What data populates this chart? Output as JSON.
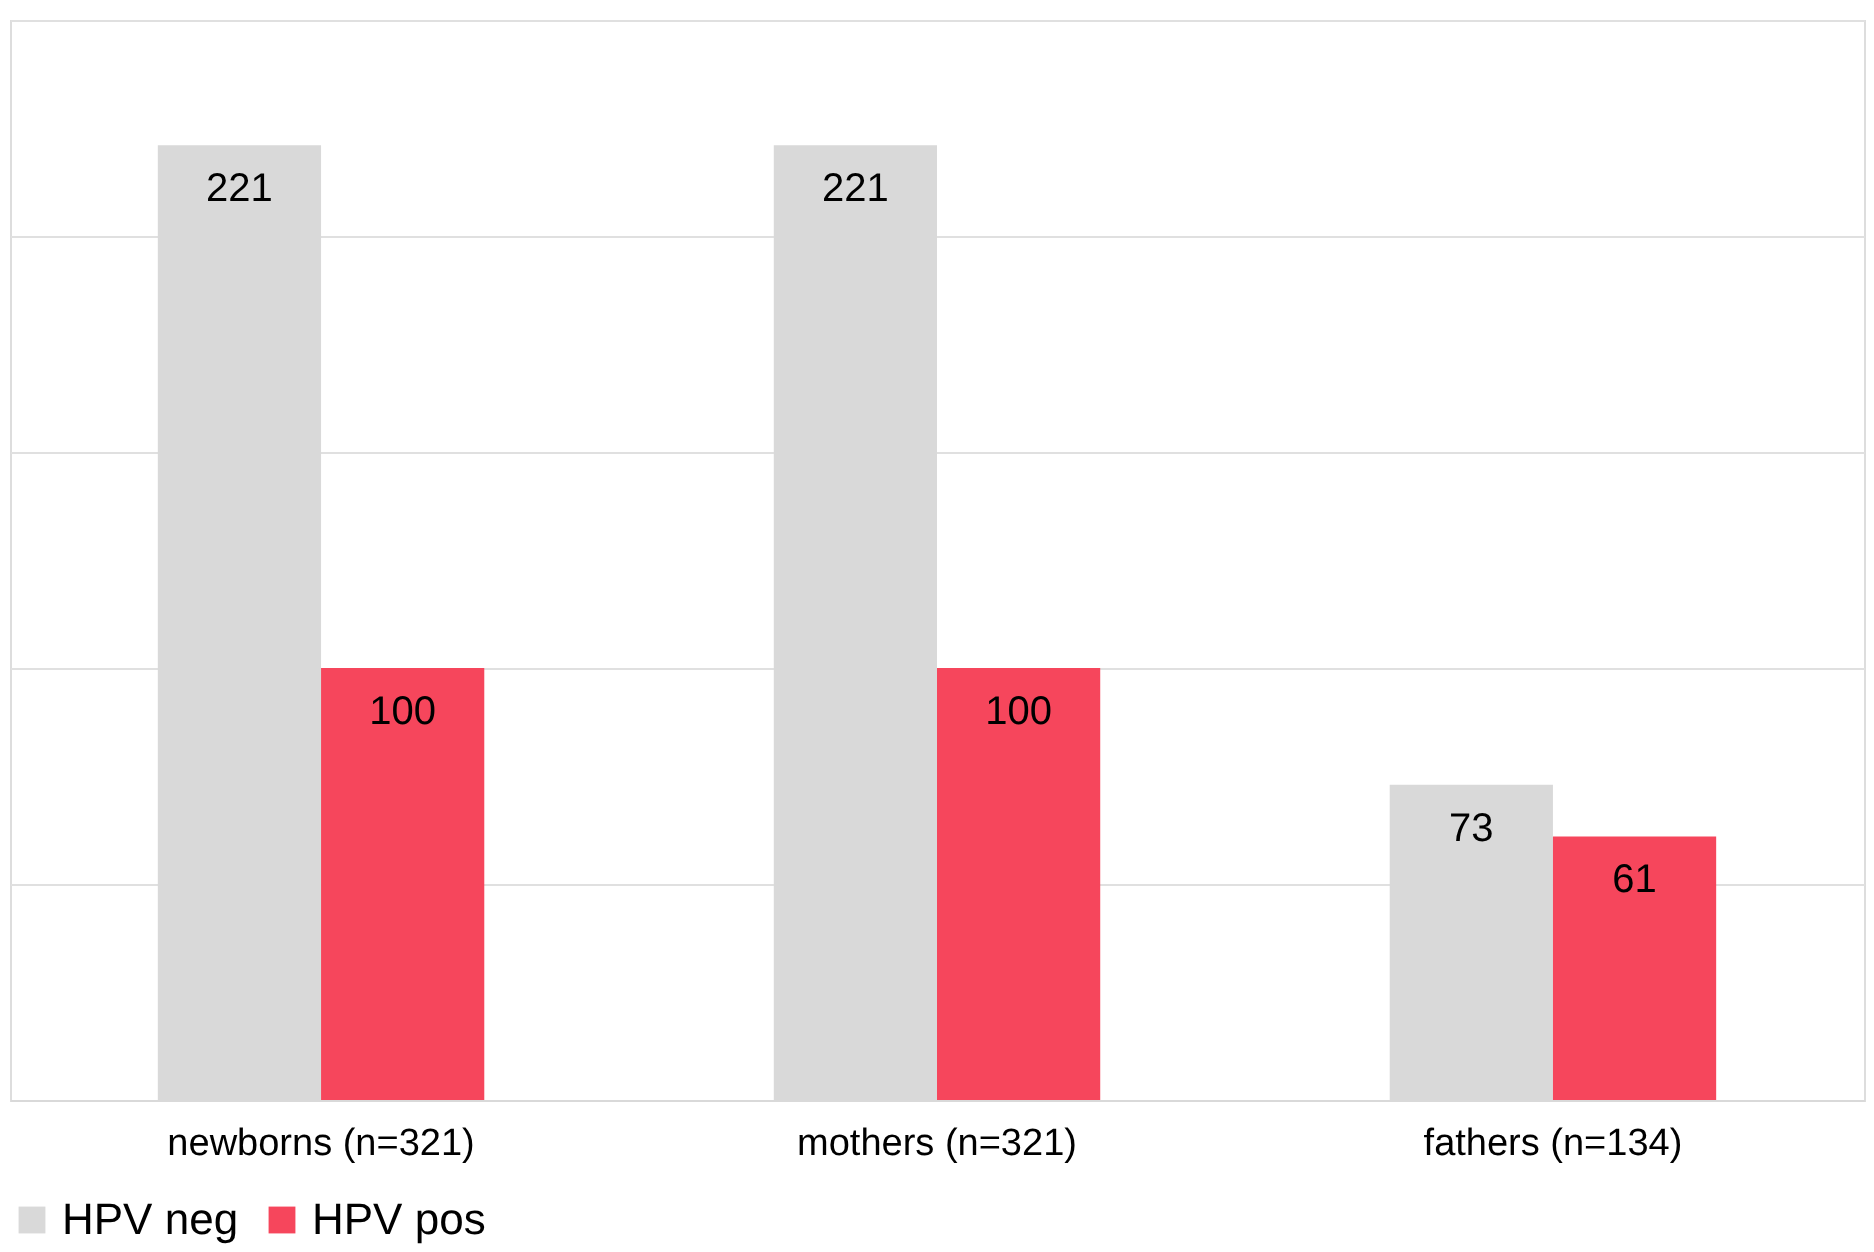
{
  "chart_data": {
    "type": "bar",
    "categories": [
      "newborns (n=321)",
      "mothers (n=321)",
      "fathers (n=134)"
    ],
    "series": [
      {
        "name": "HPV neg",
        "color": "#d9d9d9",
        "values": [
          221,
          221,
          73
        ]
      },
      {
        "name": "HPV pos",
        "color": "#f6465c",
        "values": [
          100,
          100,
          61
        ]
      }
    ],
    "ylim": [
      0,
      250
    ],
    "yticks": [
      {
        "value": 0,
        "label": null
      },
      {
        "value": 50,
        "label": null
      },
      {
        "value": 100,
        "label": null
      },
      {
        "value": 150,
        "label": null
      },
      {
        "value": 200,
        "label": null
      },
      {
        "value": 250,
        "label": null
      }
    ],
    "tick_labels": "x",
    "grid": "y",
    "legend": "bottom",
    "marker": "square",
    "data_labels": true
  }
}
